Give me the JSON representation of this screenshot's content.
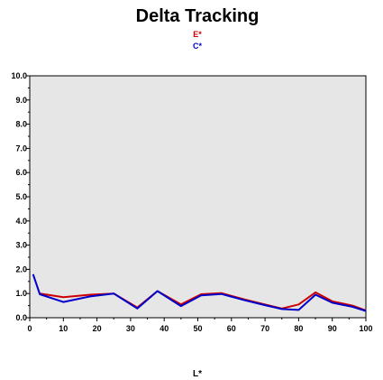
{
  "chart_data": {
    "type": "line",
    "title": "Delta Tracking",
    "xlabel": "L*",
    "ylabel": "",
    "xlim": [
      0,
      100
    ],
    "ylim": [
      0,
      10
    ],
    "x_ticks": [
      "0",
      "10",
      "20",
      "30",
      "40",
      "50",
      "60",
      "70",
      "80",
      "90",
      "100"
    ],
    "y_ticks": [
      "0.0",
      "1.0",
      "2.0",
      "3.0",
      "4.0",
      "5.0",
      "6.0",
      "7.0",
      "8.0",
      "9.0",
      "10.0"
    ],
    "grid": false,
    "legend_position": "top-center",
    "plot_background": "#e6e6e6",
    "series": [
      {
        "name": "E*",
        "color": "#cc0000",
        "x": [
          3,
          10,
          18,
          25,
          32,
          38,
          45,
          51,
          57,
          64,
          70,
          75,
          80,
          85,
          90,
          96,
          100
        ],
        "y": [
          1.0,
          0.85,
          0.95,
          1.0,
          0.42,
          1.1,
          0.55,
          0.97,
          1.02,
          0.75,
          0.55,
          0.38,
          0.55,
          1.05,
          0.68,
          0.5,
          0.3
        ]
      },
      {
        "name": "C*",
        "color": "#0000cc",
        "x": [
          1,
          3,
          10,
          18,
          25,
          32,
          38,
          45,
          51,
          57,
          64,
          70,
          75,
          80,
          85,
          90,
          96,
          100
        ],
        "y": [
          1.8,
          0.97,
          0.65,
          0.88,
          1.0,
          0.38,
          1.1,
          0.48,
          0.92,
          0.98,
          0.72,
          0.52,
          0.36,
          0.32,
          0.95,
          0.62,
          0.45,
          0.28
        ]
      }
    ]
  }
}
